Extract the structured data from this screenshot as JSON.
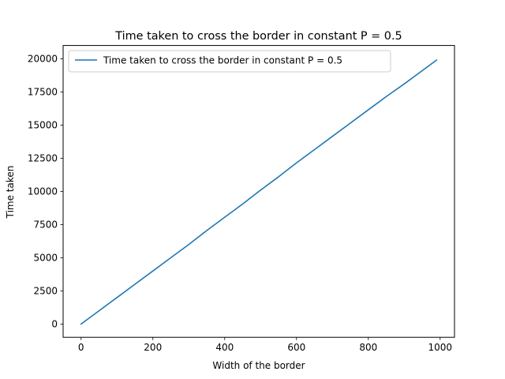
{
  "chart_data": {
    "type": "line",
    "title": "Time taken to cross the border in  constant P = 0.5",
    "xlabel": "Width of the border",
    "ylabel": "Time taken",
    "xlim": [
      -50,
      1040
    ],
    "ylim": [
      -1000,
      21000
    ],
    "x_ticks": [
      0,
      200,
      400,
      600,
      800,
      1000
    ],
    "y_ticks": [
      0,
      2500,
      5000,
      7500,
      10000,
      12500,
      15000,
      17500,
      20000
    ],
    "x_tick_labels": [
      "0",
      "200",
      "400",
      "600",
      "800",
      "1000"
    ],
    "y_tick_labels": [
      "0",
      "2500",
      "5000",
      "7500",
      "10000",
      "12500",
      "15000",
      "17500",
      "20000"
    ],
    "grid": false,
    "legend": {
      "placement": "top-left",
      "entries": [
        "Time taken to cross the border in  constant P = 0.5"
      ]
    },
    "series": [
      {
        "name": "Time taken to cross the border in  constant P = 0.5",
        "color": "#1f77b4",
        "x": [
          0,
          50,
          100,
          150,
          200,
          250,
          300,
          350,
          400,
          450,
          500,
          550,
          600,
          650,
          700,
          750,
          800,
          850,
          900,
          950,
          990
        ],
        "y": [
          0,
          1000,
          2000,
          3000,
          4000,
          5000,
          6000,
          7050,
          8050,
          9050,
          10100,
          11100,
          12150,
          13150,
          14150,
          15150,
          16150,
          17150,
          18100,
          19100,
          19900
        ]
      }
    ]
  }
}
